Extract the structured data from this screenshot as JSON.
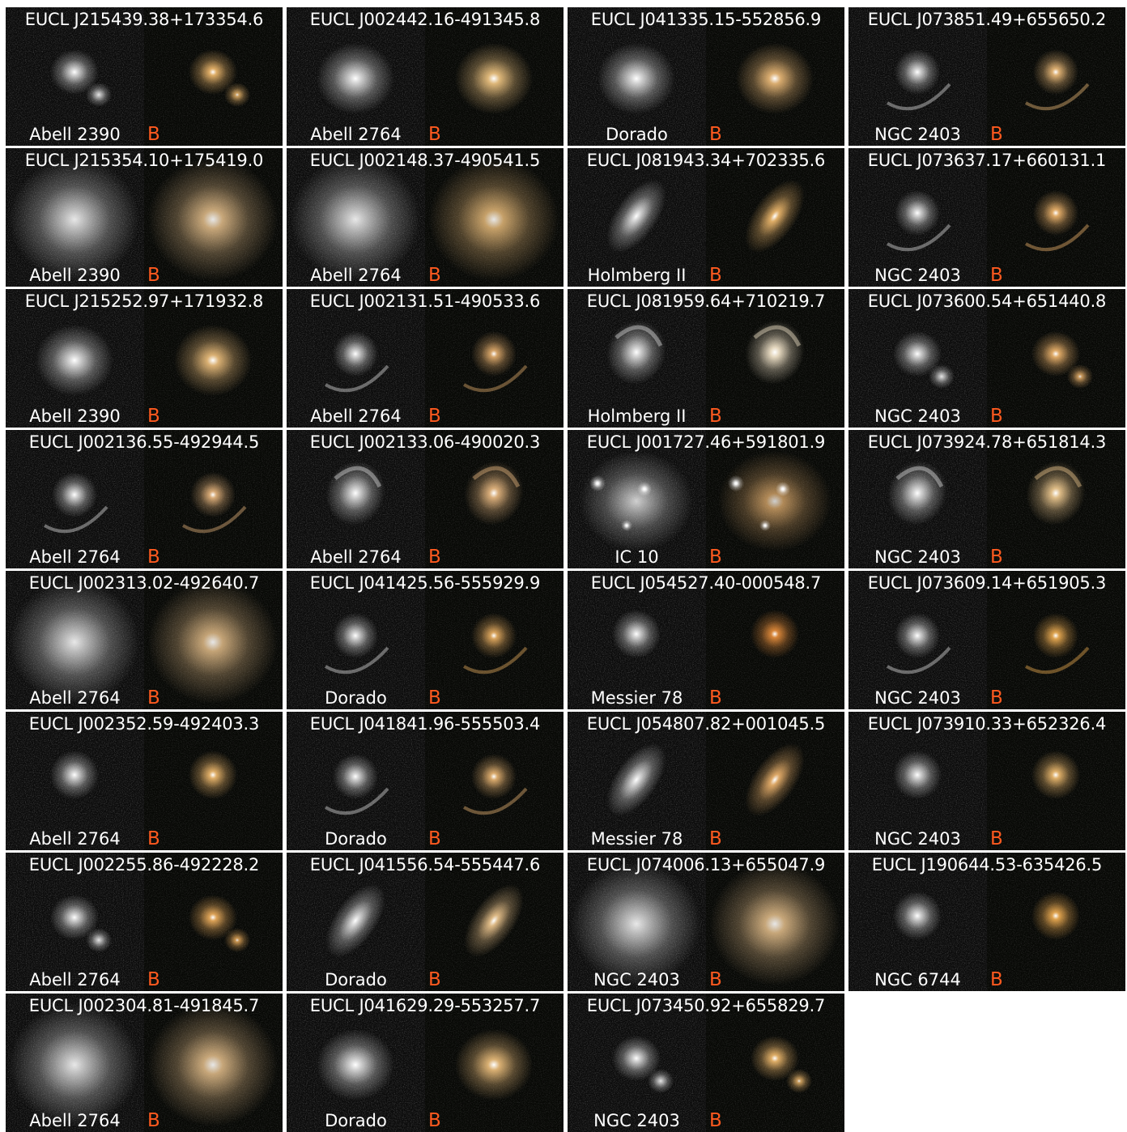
{
  "grade_color": "#ff5a1f",
  "panels": [
    {
      "title": "EUCL J215439.38+173354.6",
      "field": "Abell 2390",
      "grade": "B",
      "morph": "compact-pair",
      "tint": "#e8b46a"
    },
    {
      "title": "EUCL J215354.10+175419.0",
      "field": "Abell 2390",
      "grade": "B",
      "morph": "big-elliptical",
      "tint": "#e6c08c"
    },
    {
      "title": "EUCL J215252.97+171932.8",
      "field": "Abell 2390",
      "grade": "B",
      "morph": "elliptical",
      "tint": "#e4b878"
    },
    {
      "title": "EUCL J002136.55-492944.5",
      "field": "Abell 2764",
      "grade": "B",
      "morph": "arc-ring",
      "tint": "#e0b07a"
    },
    {
      "title": "EUCL J002313.02-492640.7",
      "field": "Abell 2764",
      "grade": "B",
      "morph": "big-elliptical",
      "tint": "#e2bc88"
    },
    {
      "title": "EUCL J002352.59-492403.3",
      "field": "Abell 2764",
      "grade": "B",
      "morph": "compact",
      "tint": "#e8b46a"
    },
    {
      "title": "EUCL J002255.86-492228.2",
      "field": "Abell 2764",
      "grade": "B",
      "morph": "compact-pair",
      "tint": "#e6a95a"
    },
    {
      "title": "EUCL J002304.81-491845.7",
      "field": "Abell 2764",
      "grade": "B",
      "morph": "big-elliptical",
      "tint": "#e6c08c"
    },
    {
      "title": "EUCL J002442.16-491345.8",
      "field": "Abell 2764",
      "grade": "B",
      "morph": "elliptical",
      "tint": "#e8bf7e"
    },
    {
      "title": "EUCL J002148.37-490541.5",
      "field": "Abell 2764",
      "grade": "B",
      "morph": "big-elliptical",
      "tint": "#e4b878"
    },
    {
      "title": "EUCL J002131.51-490533.6",
      "field": "Abell 2764",
      "grade": "B",
      "morph": "arc-ring",
      "tint": "#dca86a"
    },
    {
      "title": "EUCL J002133.06-490020.3",
      "field": "Abell 2764",
      "grade": "B",
      "morph": "spiral",
      "tint": "#e2b47e"
    },
    {
      "title": "EUCL J041425.56-555929.9",
      "field": "Dorado",
      "grade": "B",
      "morph": "arc-ring",
      "tint": "#e0a85e"
    },
    {
      "title": "EUCL J041841.96-555503.4",
      "field": "Dorado",
      "grade": "B",
      "morph": "arc-ring",
      "tint": "#e2b070"
    },
    {
      "title": "EUCL J041556.54-555447.6",
      "field": "Dorado",
      "grade": "B",
      "morph": "edge-on",
      "tint": "#e6c08a"
    },
    {
      "title": "EUCL J041629.29-553257.7",
      "field": "Dorado",
      "grade": "B",
      "morph": "elliptical",
      "tint": "#e4b878"
    },
    {
      "title": "EUCL J041335.15-552856.9",
      "field": "Dorado",
      "grade": "B",
      "morph": "elliptical",
      "tint": "#e4b474"
    },
    {
      "title": "EUCL J081943.34+702335.6",
      "field": "Holmberg II",
      "grade": "B",
      "morph": "edge-on",
      "tint": "#e8b46a"
    },
    {
      "title": "EUCL J081959.64+710219.7",
      "field": "Holmberg II",
      "grade": "B",
      "morph": "spiral",
      "tint": "#f0e2c8"
    },
    {
      "title": "EUCL J001727.46+591801.9",
      "field": "IC 10",
      "grade": "B",
      "morph": "group",
      "tint": "#e4b070"
    },
    {
      "title": "EUCL J054527.40-000548.7",
      "field": "Messier 78",
      "grade": "B",
      "morph": "compact",
      "tint": "#e08a3a"
    },
    {
      "title": "EUCL J054807.82+001045.5",
      "field": "Messier 78",
      "grade": "B",
      "morph": "edge-on",
      "tint": "#e6ae6a"
    },
    {
      "title": "EUCL J074006.13+655047.9",
      "field": "NGC 2403",
      "grade": "B",
      "morph": "big-elliptical",
      "tint": "#e6c08c"
    },
    {
      "title": "EUCL J073450.92+655829.7",
      "field": "NGC 2403",
      "grade": "B",
      "morph": "compact-pair",
      "tint": "#e8b46a"
    },
    {
      "title": "EUCL J073851.49+655650.2",
      "field": "NGC 2403",
      "grade": "B",
      "morph": "arc-ring",
      "tint": "#e6b676"
    },
    {
      "title": "EUCL J073637.17+660131.1",
      "field": "NGC 2403",
      "grade": "B",
      "morph": "arc-ring",
      "tint": "#e8b06a"
    },
    {
      "title": "EUCL J073600.54+651440.8",
      "field": "NGC 2403",
      "grade": "B",
      "morph": "compact-pair",
      "tint": "#e8b06a"
    },
    {
      "title": "EUCL J073924.78+651814.3",
      "field": "NGC 2403",
      "grade": "B",
      "morph": "spiral",
      "tint": "#e8c48c"
    },
    {
      "title": "EUCL J073609.14+651905.3",
      "field": "NGC 2403",
      "grade": "B",
      "morph": "arc-ring",
      "tint": "#e6a850"
    },
    {
      "title": "EUCL J073910.33+652326.4",
      "field": "NGC 2403",
      "grade": "B",
      "morph": "compact",
      "tint": "#e8b66c"
    },
    {
      "title": "EUCL J190644.53-635426.5",
      "field": "NGC 6744",
      "grade": "B",
      "morph": "compact",
      "tint": "#e8a850"
    }
  ]
}
